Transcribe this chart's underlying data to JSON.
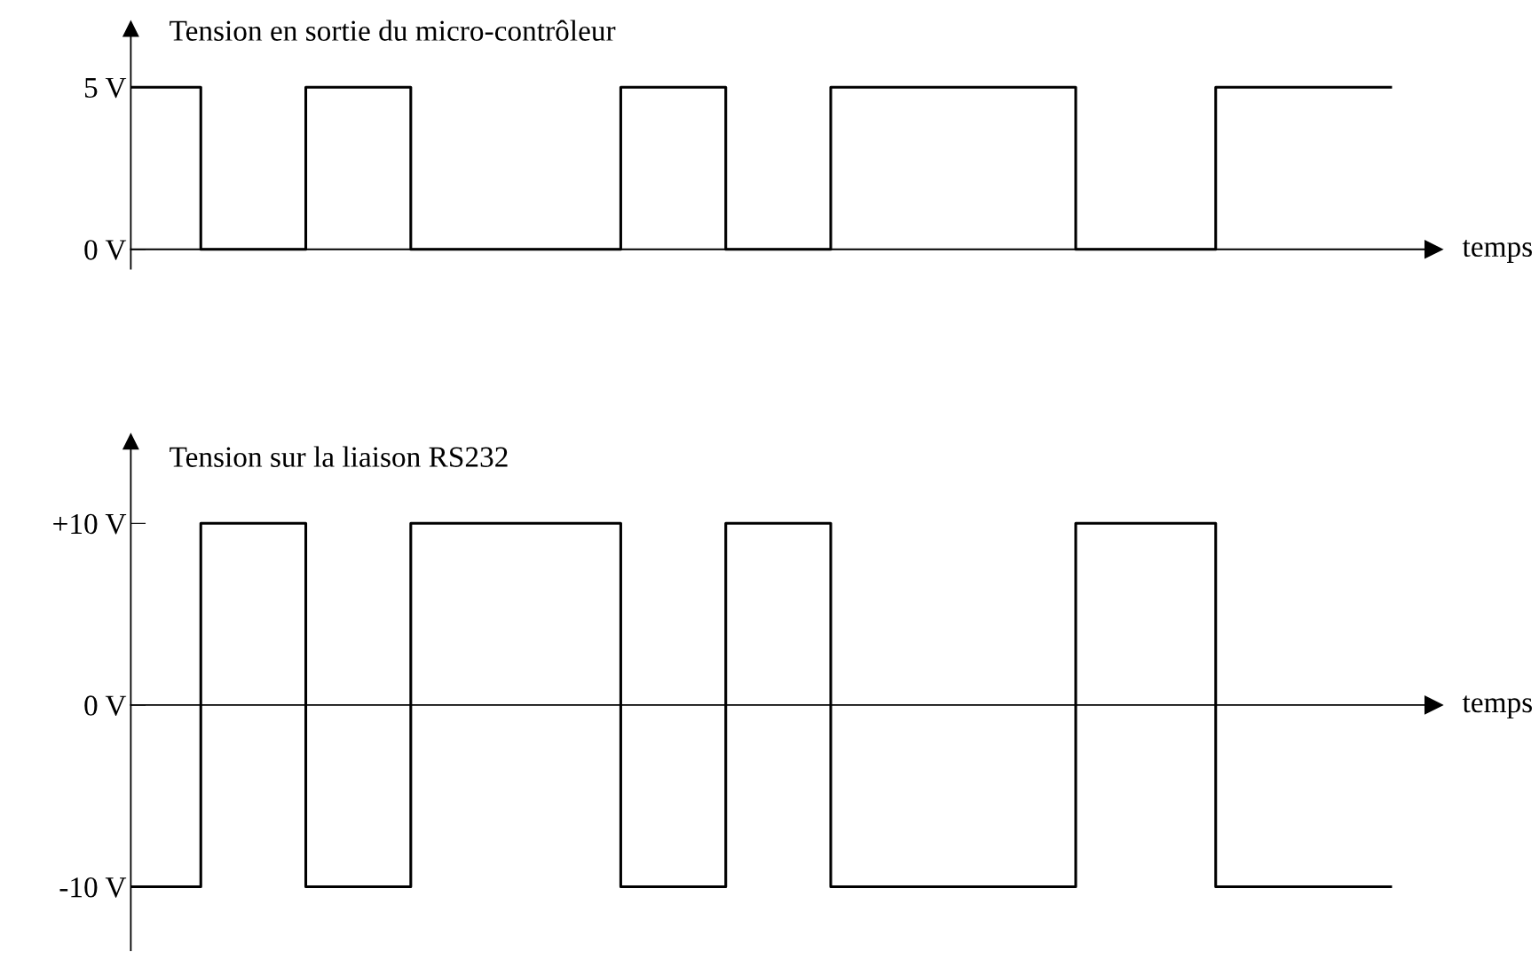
{
  "chart_data": [
    {
      "type": "step",
      "title": "Tension en sortie du micro-contrôleur",
      "xlabel": "temps",
      "categories": [
        null,
        null,
        null,
        null,
        null,
        null,
        null,
        null,
        null,
        null,
        null,
        null,
        null,
        null,
        null,
        null,
        null,
        null,
        null,
        null,
        null,
        null,
        null,
        null,
        null,
        null,
        null,
        null,
        null,
        null,
        null,
        null,
        null,
        null,
        null,
        null,
        null
      ],
      "values": [
        5,
        5,
        0,
        0,
        0,
        5,
        5,
        5,
        0,
        0,
        0,
        0,
        0,
        0,
        5,
        5,
        5,
        0,
        0,
        0,
        5,
        5,
        5,
        5,
        5,
        5,
        5,
        0,
        0,
        0,
        0,
        5,
        5,
        5,
        5,
        5,
        5
      ],
      "color": "#000000",
      "ylim": [
        -0.6,
        6.8
      ],
      "yticks": [
        {
          "value": 0,
          "label": "0 V"
        },
        {
          "value": 5,
          "label": "5 V"
        }
      ],
      "tick_labels": "y"
    },
    {
      "type": "step",
      "title": "Tension sur la liaison RS232",
      "xlabel": "temps",
      "categories": [
        null,
        null,
        null,
        null,
        null,
        null,
        null,
        null,
        null,
        null,
        null,
        null,
        null,
        null,
        null,
        null,
        null,
        null,
        null,
        null,
        null,
        null,
        null,
        null,
        null,
        null,
        null,
        null,
        null,
        null,
        null,
        null,
        null,
        null,
        null,
        null,
        null
      ],
      "values": [
        -10,
        -10,
        10,
        10,
        10,
        -10,
        -10,
        -10,
        10,
        10,
        10,
        10,
        10,
        10,
        -10,
        -10,
        -10,
        10,
        10,
        10,
        -10,
        -10,
        -10,
        -10,
        -10,
        -10,
        -10,
        10,
        10,
        10,
        10,
        -10,
        -10,
        -10,
        -10,
        -10,
        -10
      ],
      "color": "#000000",
      "ylim": [
        -13.5,
        14.5
      ],
      "yticks": [
        {
          "value": -10,
          "label": "-10 V"
        },
        {
          "value": 0,
          "label": "0 V"
        },
        {
          "value": 10,
          "label": "+10 V"
        }
      ],
      "tick_labels": "y"
    }
  ]
}
